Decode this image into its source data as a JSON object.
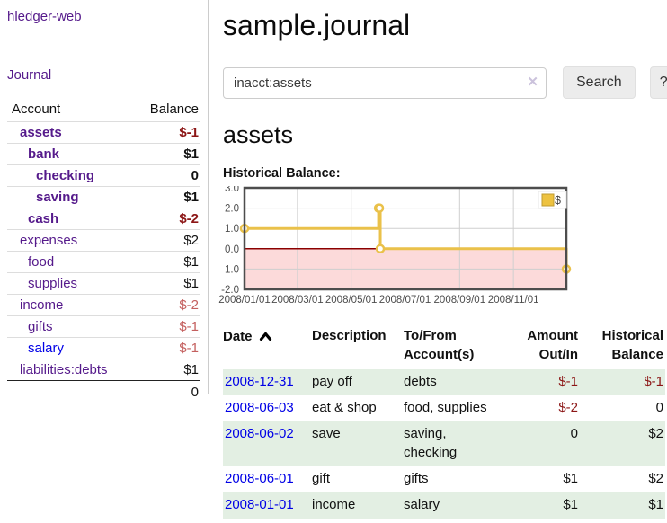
{
  "sidebar": {
    "brand": "hledger-web",
    "nav": {
      "journal_label": "Journal"
    },
    "accounts_table": {
      "headers": {
        "account": "Account",
        "balance": "Balance"
      },
      "rows": [
        {
          "name": "assets",
          "level": 0,
          "bold": true,
          "balance": "$-1",
          "negative": "strong",
          "link_color": "purple"
        },
        {
          "name": "bank",
          "level": 1,
          "bold": true,
          "balance": "$1",
          "negative": "none",
          "link_color": "purple"
        },
        {
          "name": "checking",
          "level": 2,
          "bold": true,
          "balance": "0",
          "negative": "none",
          "link_color": "purple"
        },
        {
          "name": "saving",
          "level": 2,
          "bold": true,
          "balance": "$1",
          "negative": "none",
          "link_color": "purple"
        },
        {
          "name": "cash",
          "level": 1,
          "bold": true,
          "balance": "$-2",
          "negative": "strong",
          "link_color": "purple"
        },
        {
          "name": "expenses",
          "level": 0,
          "bold": false,
          "balance": "$2",
          "negative": "none",
          "link_color": "purple"
        },
        {
          "name": "food",
          "level": 1,
          "bold": false,
          "balance": "$1",
          "negative": "none",
          "link_color": "purple"
        },
        {
          "name": "supplies",
          "level": 1,
          "bold": false,
          "balance": "$1",
          "negative": "none",
          "link_color": "purple"
        },
        {
          "name": "income",
          "level": 0,
          "bold": false,
          "balance": "$-2",
          "negative": "soft",
          "link_color": "purple"
        },
        {
          "name": "gifts",
          "level": 1,
          "bold": false,
          "balance": "$-1",
          "negative": "soft",
          "link_color": "purple"
        },
        {
          "name": "salary",
          "level": 1,
          "bold": false,
          "balance": "$-1",
          "negative": "soft",
          "link_color": "blue"
        },
        {
          "name": "liabilities:debts",
          "level": 0,
          "bold": false,
          "balance": "$1",
          "negative": "none",
          "link_color": "purple"
        }
      ],
      "total": "0"
    }
  },
  "main": {
    "title": "sample.journal",
    "search": {
      "query": "inacct:assets",
      "clear_label": "✕",
      "button_label": "Search",
      "help_label": "?"
    },
    "account_heading": "assets",
    "chart_label": "Historical Balance:",
    "register_table": {
      "headers": [
        "Date",
        "Description",
        "To/From Account(s)",
        "Amount Out/In",
        "Historical Balance"
      ],
      "rows": [
        {
          "date": "2008-12-31",
          "description": "pay off",
          "accounts": "debts",
          "amount": "$-1",
          "amount_negative": true,
          "balance": "$-1",
          "balance_negative": true
        },
        {
          "date": "2008-06-03",
          "description": "eat & shop",
          "accounts": "food, supplies",
          "amount": "$-2",
          "amount_negative": true,
          "balance": "0",
          "balance_negative": false
        },
        {
          "date": "2008-06-02",
          "description": "save",
          "accounts": "saving, checking",
          "amount": "0",
          "amount_negative": false,
          "balance": "$2",
          "balance_negative": false
        },
        {
          "date": "2008-06-01",
          "description": "gift",
          "accounts": "gifts",
          "amount": "$1",
          "amount_negative": false,
          "balance": "$2",
          "balance_negative": false
        },
        {
          "date": "2008-01-01",
          "description": "income",
          "accounts": "salary",
          "amount": "$1",
          "amount_negative": false,
          "balance": "$1",
          "balance_negative": false
        }
      ]
    }
  },
  "chart_data": {
    "type": "line",
    "step": true,
    "title": "Historical Balance",
    "series": [
      {
        "name": "$",
        "color": "#EAC14A",
        "points": [
          [
            "2008-01-01",
            1
          ],
          [
            "2008-06-01",
            2
          ],
          [
            "2008-06-02",
            2
          ],
          [
            "2008-06-03",
            0
          ],
          [
            "2008-12-31",
            -1
          ]
        ]
      }
    ],
    "x_ticks": [
      {
        "date": "2008-01-01",
        "label": "2008/01/01"
      },
      {
        "date": "2008-03-01",
        "label": "2008/03/01"
      },
      {
        "date": "2008-05-01",
        "label": "2008/05/01"
      },
      {
        "date": "2008-07-01",
        "label": "2008/07/01"
      },
      {
        "date": "2008-09-01",
        "label": "2008/09/01"
      },
      {
        "date": "2008-11-01",
        "label": "2008/11/01"
      }
    ],
    "y_ticks": [
      {
        "v": 3,
        "label": "3.0"
      },
      {
        "v": 2,
        "label": "2.0"
      },
      {
        "v": 1,
        "label": "1.0"
      },
      {
        "v": 0,
        "label": "0.0"
      },
      {
        "v": -1,
        "label": "-1.0"
      },
      {
        "v": -2,
        "label": "-2.0"
      }
    ],
    "xlim": [
      "2008-01-01",
      "2008-12-31"
    ],
    "ylim": [
      -2,
      3
    ],
    "grid": true,
    "negative_fill": "#fcdada",
    "zero_line_color": "#8b0000",
    "legend": {
      "label": "$",
      "swatch_color": "#EDC240",
      "position": "top-right"
    }
  },
  "colors": {
    "link_purple": "#551a8b",
    "link_blue": "#0000e6",
    "negative_strong": "#8c1616",
    "negative_soft": "#c4605f",
    "row_green": "#e3efe3",
    "chart_negative_pink": "#fcdada",
    "chart_series_yellow": "#EDC240",
    "chart_zero_line": "#8b0000"
  }
}
